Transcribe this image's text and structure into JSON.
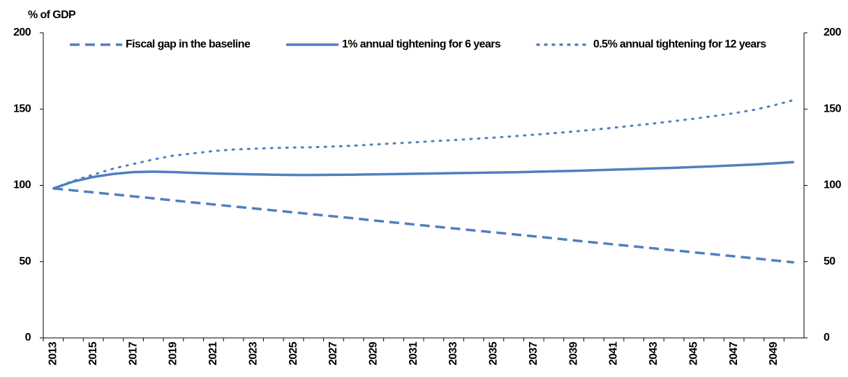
{
  "chart_data": {
    "type": "line",
    "y_label": "% of GDP",
    "categories": [
      "2013",
      null,
      "2015",
      null,
      "2017",
      null,
      "2019",
      null,
      "2021",
      null,
      "2023",
      null,
      "2025",
      null,
      "2027",
      null,
      "2029",
      null,
      "2031",
      null,
      "2033",
      null,
      "2035",
      null,
      "2037",
      null,
      "2039",
      null,
      "2041",
      null,
      "2043",
      null,
      "2045",
      null,
      "2047",
      null,
      "2049",
      null
    ],
    "series": [
      {
        "name": "Fiscal gap in the baseline",
        "color": "#4f7fc0",
        "dash": "dashed",
        "values": [
          98.0,
          96.7,
          95.4,
          94.1,
          92.8,
          91.5,
          90.1,
          88.8,
          87.5,
          86.2,
          84.9,
          83.6,
          82.3,
          81.0,
          79.7,
          78.4,
          77.0,
          75.7,
          74.4,
          73.1,
          71.8,
          70.5,
          69.2,
          67.9,
          66.6,
          65.3,
          63.9,
          62.6,
          61.3,
          60.0,
          58.7,
          57.4,
          56.1,
          54.8,
          53.5,
          52.2,
          50.8,
          49.5
        ]
      },
      {
        "name": "1% annual tightening for 6 years",
        "color": "#4f7fc0",
        "dash": "solid",
        "values": [
          98,
          102.5,
          105.5,
          107.5,
          108.7,
          109,
          108.7,
          108.2,
          107.8,
          107.5,
          107.2,
          107,
          106.8,
          106.8,
          106.9,
          107,
          107.2,
          107.4,
          107.6,
          107.8,
          108,
          108.2,
          108.4,
          108.6,
          108.9,
          109.2,
          109.5,
          109.9,
          110.3,
          110.7,
          111.1,
          111.5,
          112,
          112.5,
          113.1,
          113.7,
          114.4,
          115.3
        ]
      },
      {
        "name": "0.5% annual tightening for 12 years",
        "color": "#4f7fc0",
        "dash": "dotted",
        "values": [
          98,
          103,
          107,
          111,
          114,
          117,
          119.5,
          121,
          122.5,
          123.5,
          124,
          124.5,
          124.8,
          125,
          125.5,
          126,
          126.8,
          127.5,
          128.2,
          129,
          129.7,
          130.5,
          131.3,
          132.2,
          133.2,
          134.2,
          135.3,
          136.5,
          137.8,
          139.2,
          140.6,
          142.1,
          143.7,
          145.4,
          147.3,
          149.5,
          152.5,
          156
        ]
      }
    ],
    "ylim": [
      0,
      200
    ],
    "yticks": [
      0,
      50,
      100,
      150,
      200
    ],
    "y2lim": [
      0,
      200
    ],
    "y2ticks": [
      0,
      50,
      100,
      150,
      200
    ],
    "legend": "top",
    "grid": false
  }
}
